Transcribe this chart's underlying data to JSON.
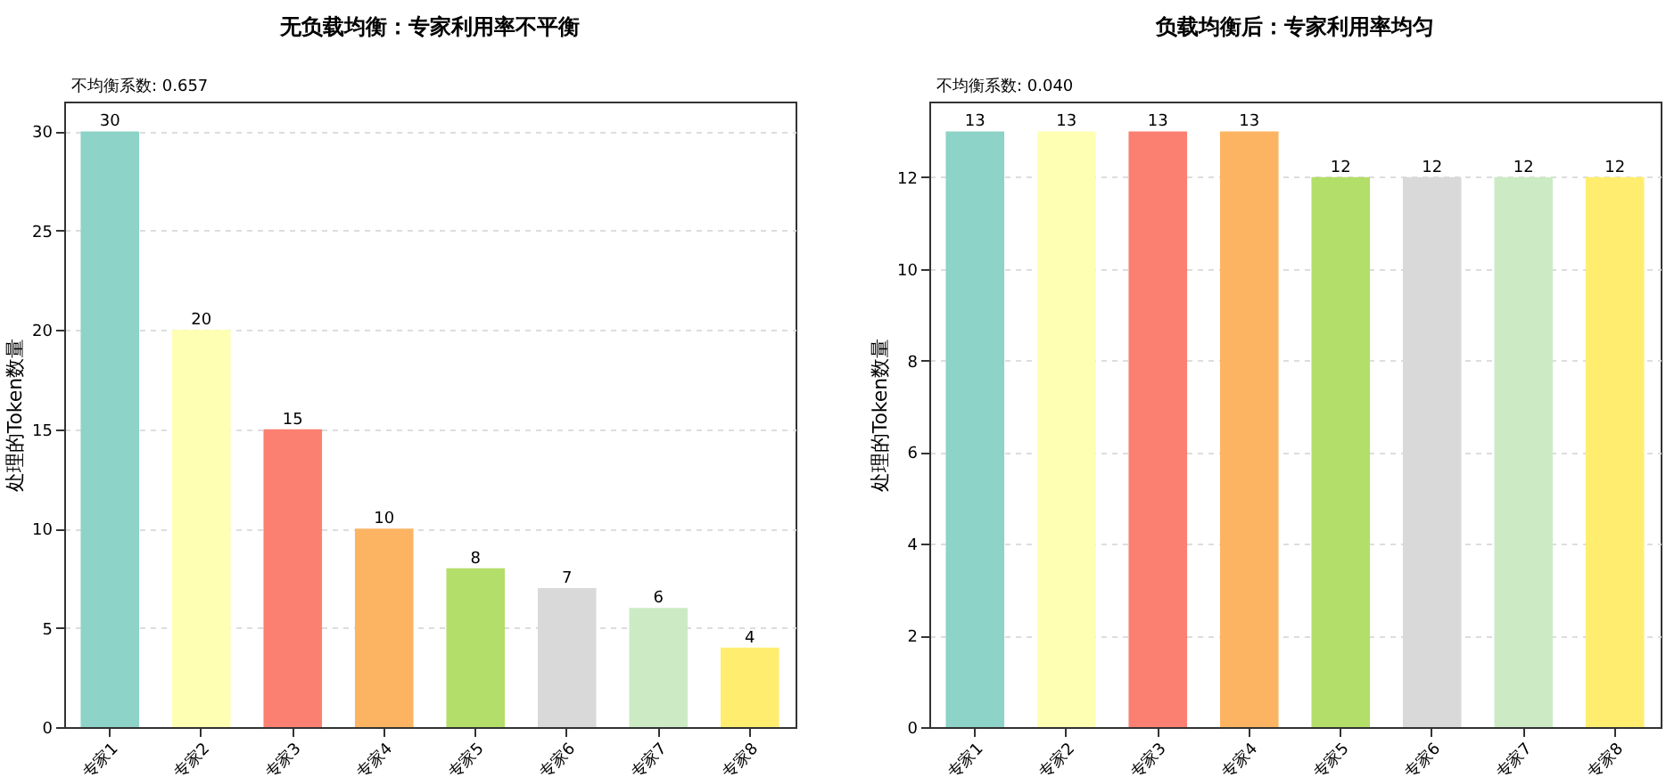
{
  "chart_data": [
    {
      "type": "bar",
      "title": "无负载均衡：专家利用率不平衡",
      "ylabel": "处理的Token数量",
      "categories": [
        "专家1",
        "专家2",
        "专家3",
        "专家4",
        "专家5",
        "专家6",
        "专家7",
        "专家8"
      ],
      "values": [
        30,
        20,
        15,
        10,
        8,
        7,
        6,
        4
      ],
      "colors": [
        "#8dd3c7",
        "#ffffb3",
        "#fb8072",
        "#fdb462",
        "#b3de69",
        "#d9d9d9",
        "#ccebc5",
        "#ffed6f"
      ],
      "ylim": [
        0,
        31.5
      ],
      "yticks": [
        0,
        5,
        10,
        15,
        20,
        25,
        30
      ],
      "grid": "y",
      "data_labels": true,
      "annotations": [
        "不均衡系数: 0.657"
      ]
    },
    {
      "type": "bar",
      "title": "负载均衡后：专家利用率均匀",
      "ylabel": "处理的Token数量",
      "categories": [
        "专家1",
        "专家2",
        "专家3",
        "专家4",
        "专家5",
        "专家6",
        "专家7",
        "专家8"
      ],
      "values": [
        13,
        13,
        13,
        13,
        12,
        12,
        12,
        12
      ],
      "colors": [
        "#8dd3c7",
        "#ffffb3",
        "#fb8072",
        "#fdb462",
        "#b3de69",
        "#d9d9d9",
        "#ccebc5",
        "#ffed6f"
      ],
      "ylim": [
        0,
        13.65
      ],
      "yticks": [
        0,
        2,
        4,
        6,
        8,
        10,
        12
      ],
      "grid": "y",
      "data_labels": true,
      "annotations": [
        "不均衡系数: 0.040"
      ]
    }
  ]
}
